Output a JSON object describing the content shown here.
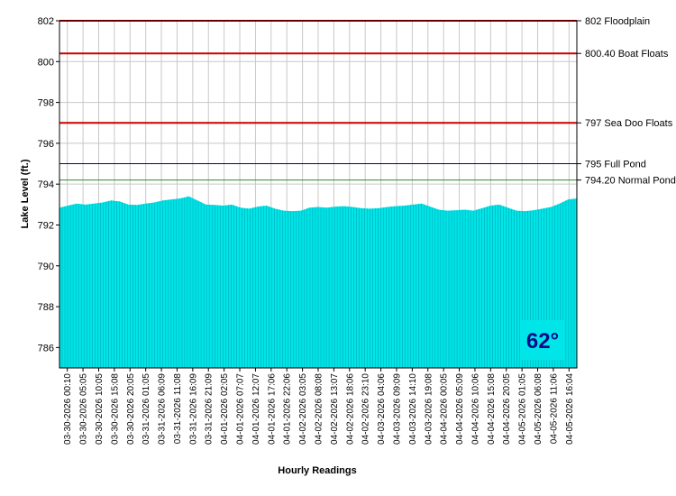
{
  "chart_data": {
    "type": "area",
    "title": "",
    "xlabel": "Hourly Readings",
    "ylabel": "Lake Level (ft.)",
    "ylim": [
      785,
      802
    ],
    "y_ticks": [
      786,
      788,
      790,
      792,
      794,
      796,
      798,
      800,
      802
    ],
    "grid": true,
    "fill_color": "#00e5e8",
    "x_tick_labels": [
      "03-30-2026 00:10",
      "03-30-2026 05:05",
      "03-30-2026 10:05",
      "03-30-2026 15:08",
      "03-30-2026 20:05",
      "03-31-2026 01:05",
      "03-31-2026 06:09",
      "03-31-2026 11:08",
      "03-31-2026 16:09",
      "03-31-2026 21:09",
      "04-01-2026 02:05",
      "04-01-2026 07:07",
      "04-01-2026 12:07",
      "04-01-2026 17:06",
      "04-01-2026 22:06",
      "04-02-2026 03:05",
      "04-02-2026 08:08",
      "04-02-2026 13:07",
      "04-02-2026 18:06",
      "04-02-2026 23:10",
      "04-03-2026 04:06",
      "04-03-2026 09:09",
      "04-03-2026 14:10",
      "04-03-2026 19:08",
      "04-04-2026 00:05",
      "04-04-2026 05:09",
      "04-04-2026 10:06",
      "04-04-2026 15:08",
      "04-04-2026 20:05",
      "04-05-2026 01:05",
      "04-05-2026 06:08",
      "04-05-2026 11:06",
      "04-05-2026 16:04"
    ],
    "series": [
      {
        "values": [
          792.85,
          792.95,
          793.05,
          793.0,
          793.05,
          793.1,
          793.2,
          793.15,
          793.0,
          792.98,
          793.05,
          793.1,
          793.2,
          793.25,
          793.3,
          793.4,
          793.2,
          793.0,
          792.98,
          792.95,
          793.0,
          792.85,
          792.8,
          792.9,
          792.95,
          792.8,
          792.7,
          792.68,
          792.7,
          792.85,
          792.88,
          792.85,
          792.9,
          792.92,
          792.88,
          792.82,
          792.8,
          792.82,
          792.88,
          792.92,
          792.95,
          793.0,
          793.05,
          792.9,
          792.75,
          792.7,
          792.72,
          792.75,
          792.7,
          792.82,
          792.95,
          793.0,
          792.85,
          792.7,
          792.68,
          792.72,
          792.8,
          792.88,
          793.05,
          793.25,
          793.3
        ]
      }
    ],
    "reference_lines": [
      {
        "value": 802,
        "label": "802 Floodplain",
        "color": "#cc0000"
      },
      {
        "value": 800.4,
        "label": "800.40 Boat Floats",
        "color": "#cc0000"
      },
      {
        "value": 797,
        "label": "797 Sea Doo Floats",
        "color": "#cc0000"
      },
      {
        "value": 795,
        "label": "795 Full Pond",
        "color": "#000080"
      },
      {
        "value": 794.2,
        "label": "794.20 Normal Pond",
        "color": "#2e8b2e"
      }
    ],
    "annotation": {
      "text": "62°",
      "background": "#00e5e8",
      "color": "#0a0a8a"
    }
  }
}
